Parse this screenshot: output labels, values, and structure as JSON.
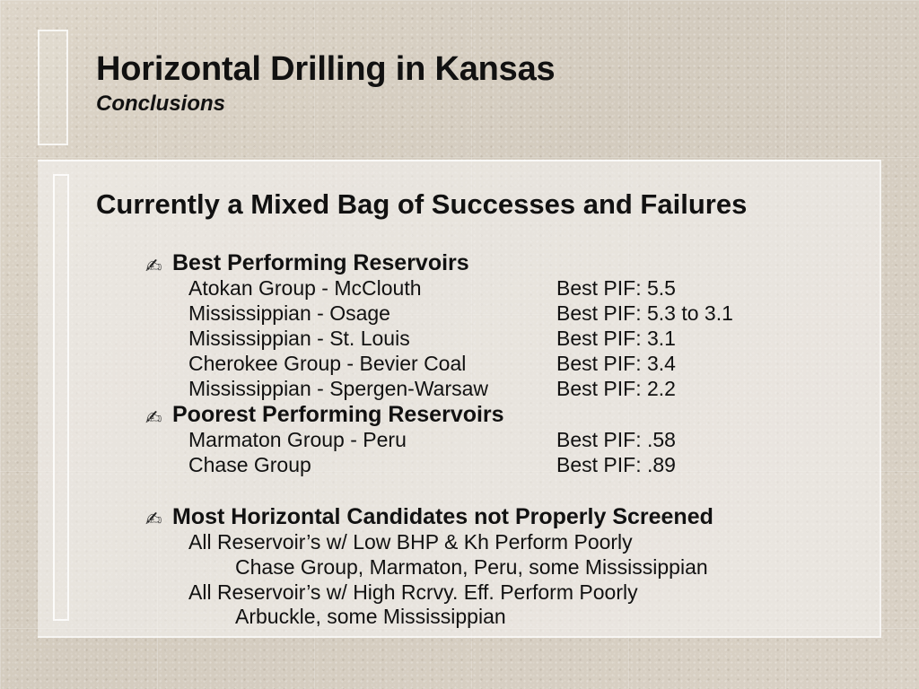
{
  "slide": {
    "title": "Horizontal Drilling in Kansas",
    "subtitle": "Conclusions",
    "headline": "Currently a Mixed Bag of Successes and Failures"
  },
  "sections": {
    "best": {
      "title": "Best Performing Reservoirs",
      "items": [
        {
          "reservoir": "Atokan Group - McClouth",
          "pif": "Best PIF: 5.5"
        },
        {
          "reservoir": "Mississippian - Osage",
          "pif": "Best PIF: 5.3 to 3.1"
        },
        {
          "reservoir": "Mississippian - St. Louis",
          "pif": "Best PIF: 3.1"
        },
        {
          "reservoir": "Cherokee Group - Bevier Coal",
          "pif": "Best PIF: 3.4"
        },
        {
          "reservoir": "Mississippian - Spergen-Warsaw",
          "pif": "Best PIF: 2.2"
        }
      ]
    },
    "poorest": {
      "title": "Poorest Performing Reservoirs",
      "items": [
        {
          "reservoir": "Marmaton Group - Peru",
          "pif": "Best PIF: .58"
        },
        {
          "reservoir": "Chase Group",
          "pif": "Best PIF: .89"
        }
      ]
    },
    "screening": {
      "title": "Most Horizontal Candidates not Properly Screened",
      "lines": [
        "All Reservoir’s w/ Low BHP & Kh Perform Poorly",
        "Chase Group, Marmaton, Peru, some Mississippian",
        "All Reservoir’s w/ High Rcrvy. Eff. Perform Poorly",
        "Arbuckle, some Mississippian"
      ]
    }
  },
  "icons": {
    "bullet": "writing-hand-icon"
  }
}
